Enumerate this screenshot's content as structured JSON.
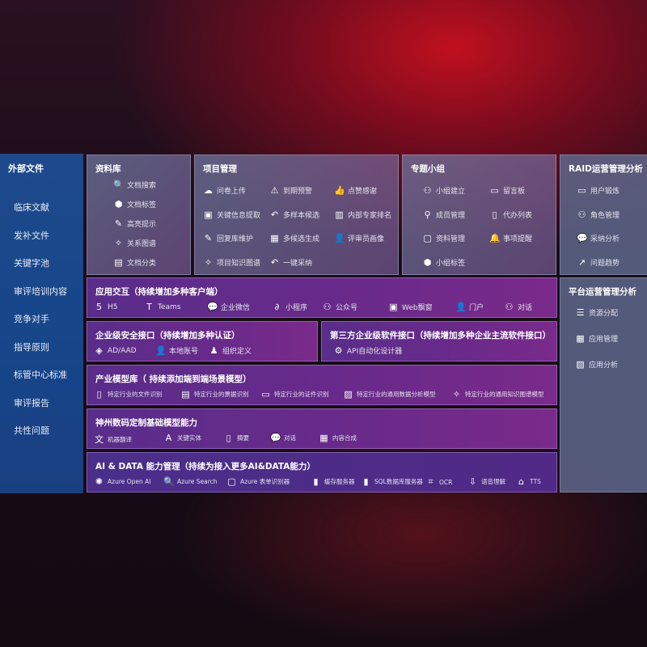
{
  "sidebar": {
    "title": "外部文件",
    "items": [
      "临床文献",
      "发补文件",
      "关键字池",
      "审评培训内容",
      "竞争对手",
      "指导原则",
      "标管中心标准",
      "审评报告",
      "共性问题"
    ]
  },
  "library": {
    "title": "资料库",
    "items": [
      {
        "label": "文档搜索",
        "icon": "document-search-icon"
      },
      {
        "label": "文档标签",
        "icon": "tag-icon"
      },
      {
        "label": "高亮提示",
        "icon": "pen-icon"
      },
      {
        "label": "关系图谱",
        "icon": "graph-icon"
      },
      {
        "label": "文档分类",
        "icon": "document-stack-icon"
      }
    ]
  },
  "project": {
    "title": "项目管理",
    "items": [
      {
        "label": "问卷上传",
        "icon": "cloud-upload-icon"
      },
      {
        "label": "到期预警",
        "icon": "alarm-icon"
      },
      {
        "label": "点赞感谢",
        "icon": "thumbs-up-icon"
      },
      {
        "label": "关键信息提取",
        "icon": "window-icon"
      },
      {
        "label": "多样本候选",
        "icon": "reply-icon"
      },
      {
        "label": "内部专家排名",
        "icon": "ranking-icon"
      },
      {
        "label": "回复库维护",
        "icon": "edit-icon"
      },
      {
        "label": "多候选生成",
        "icon": "puzzle-icon"
      },
      {
        "label": "评审员画像",
        "icon": "user-icon"
      },
      {
        "label": "项目知识图谱",
        "icon": "graph-icon"
      },
      {
        "label": "一键采纳",
        "icon": "reply-icon"
      }
    ]
  },
  "group": {
    "title": "专题小组",
    "items": [
      {
        "label": "小组建立",
        "icon": "users-icon"
      },
      {
        "label": "留言板",
        "icon": "bbs-icon"
      },
      {
        "label": "成员管理",
        "icon": "user-add-icon"
      },
      {
        "label": "代办列表",
        "icon": "clipboard-icon"
      },
      {
        "label": "资料管理",
        "icon": "folder-icon"
      },
      {
        "label": "事项提醒",
        "icon": "bell-icon"
      },
      {
        "label": "小组标签",
        "icon": "tag-icon"
      }
    ]
  },
  "raid": {
    "title": "RAID运营管理分析",
    "items": [
      {
        "label": "用户锻炼",
        "icon": "id-card-icon"
      },
      {
        "label": "角色管理",
        "icon": "users-icon"
      },
      {
        "label": "采纳分析",
        "icon": "qa-icon"
      },
      {
        "label": "问题趋势",
        "icon": "trend-icon"
      }
    ]
  },
  "app": {
    "title": "应用交互（持续增加多种客户端）",
    "items": [
      {
        "label": "H5",
        "icon": "html5-icon"
      },
      {
        "label": "Teams",
        "icon": "teams-icon"
      },
      {
        "label": "企业微信",
        "icon": "wechat-icon"
      },
      {
        "label": "小程序",
        "icon": "miniprogram-icon"
      },
      {
        "label": "公众号",
        "icon": "users-icon"
      },
      {
        "label": "Web飘窗",
        "icon": "window-icon"
      },
      {
        "label": "门户",
        "icon": "portal-icon"
      },
      {
        "label": "对话",
        "icon": "chat-users-icon"
      }
    ]
  },
  "security": {
    "title": "企业级安全接口（持续增加多种认证）",
    "items": [
      {
        "label": "AD/AAD",
        "icon": "diamond-icon"
      },
      {
        "label": "本地账号",
        "icon": "user-lock-icon"
      },
      {
        "label": "组织定义",
        "icon": "org-icon"
      }
    ]
  },
  "thirdparty": {
    "title": "第三方企业级软件接口（持续增加多种企业主流软件接口）",
    "items": [
      {
        "label": "API自动化设计器",
        "icon": "gear-icon"
      }
    ]
  },
  "industry": {
    "title": "产业模型库（ 持续添加端到端场景模型）",
    "items": [
      {
        "label": "特定行业的文件识别",
        "icon": "file-icon"
      },
      {
        "label": "特定行业的票据识别",
        "icon": "receipt-icon"
      },
      {
        "label": "特定行业的证件识别",
        "icon": "id-card-icon"
      },
      {
        "label": "特定行业的通用数据分析模型",
        "icon": "chart-icon"
      },
      {
        "label": "特定行业的通用知识图谱模型",
        "icon": "graph-icon"
      }
    ]
  },
  "base": {
    "title": "神州数码定制基础模型能力",
    "items": [
      {
        "label": "机器翻译",
        "icon": "translate-icon"
      },
      {
        "label": "关键实体",
        "icon": "entity-icon"
      },
      {
        "label": "摘要",
        "icon": "document-icon"
      },
      {
        "label": "对话",
        "icon": "chat-icon"
      },
      {
        "label": "内容合成",
        "icon": "puzzle-icon"
      }
    ]
  },
  "aidata": {
    "title": "AI & DATA 能力管理（持续为接入更多AI&DATA能力）",
    "items": [
      {
        "label": "Azure Open AI",
        "icon": "openai-icon"
      },
      {
        "label": "Azure Search",
        "icon": "document-search-icon"
      },
      {
        "label": "Azure 表单识别器",
        "icon": "form-icon"
      },
      {
        "label": "缓存服务器",
        "icon": "cache-icon"
      },
      {
        "label": "SQL数据库服务器",
        "icon": "database-icon"
      },
      {
        "label": "OCR",
        "icon": "ocr-icon"
      },
      {
        "label": "语音理解",
        "icon": "download-icon"
      },
      {
        "label": "TTS",
        "icon": "tts-icon"
      }
    ]
  },
  "platform": {
    "title": "平台运营管理分析",
    "items": [
      {
        "label": "资源分配",
        "icon": "checklist-icon"
      },
      {
        "label": "应用管理",
        "icon": "apps-icon"
      },
      {
        "label": "应用分析",
        "icon": "analytics-icon"
      }
    ]
  }
}
